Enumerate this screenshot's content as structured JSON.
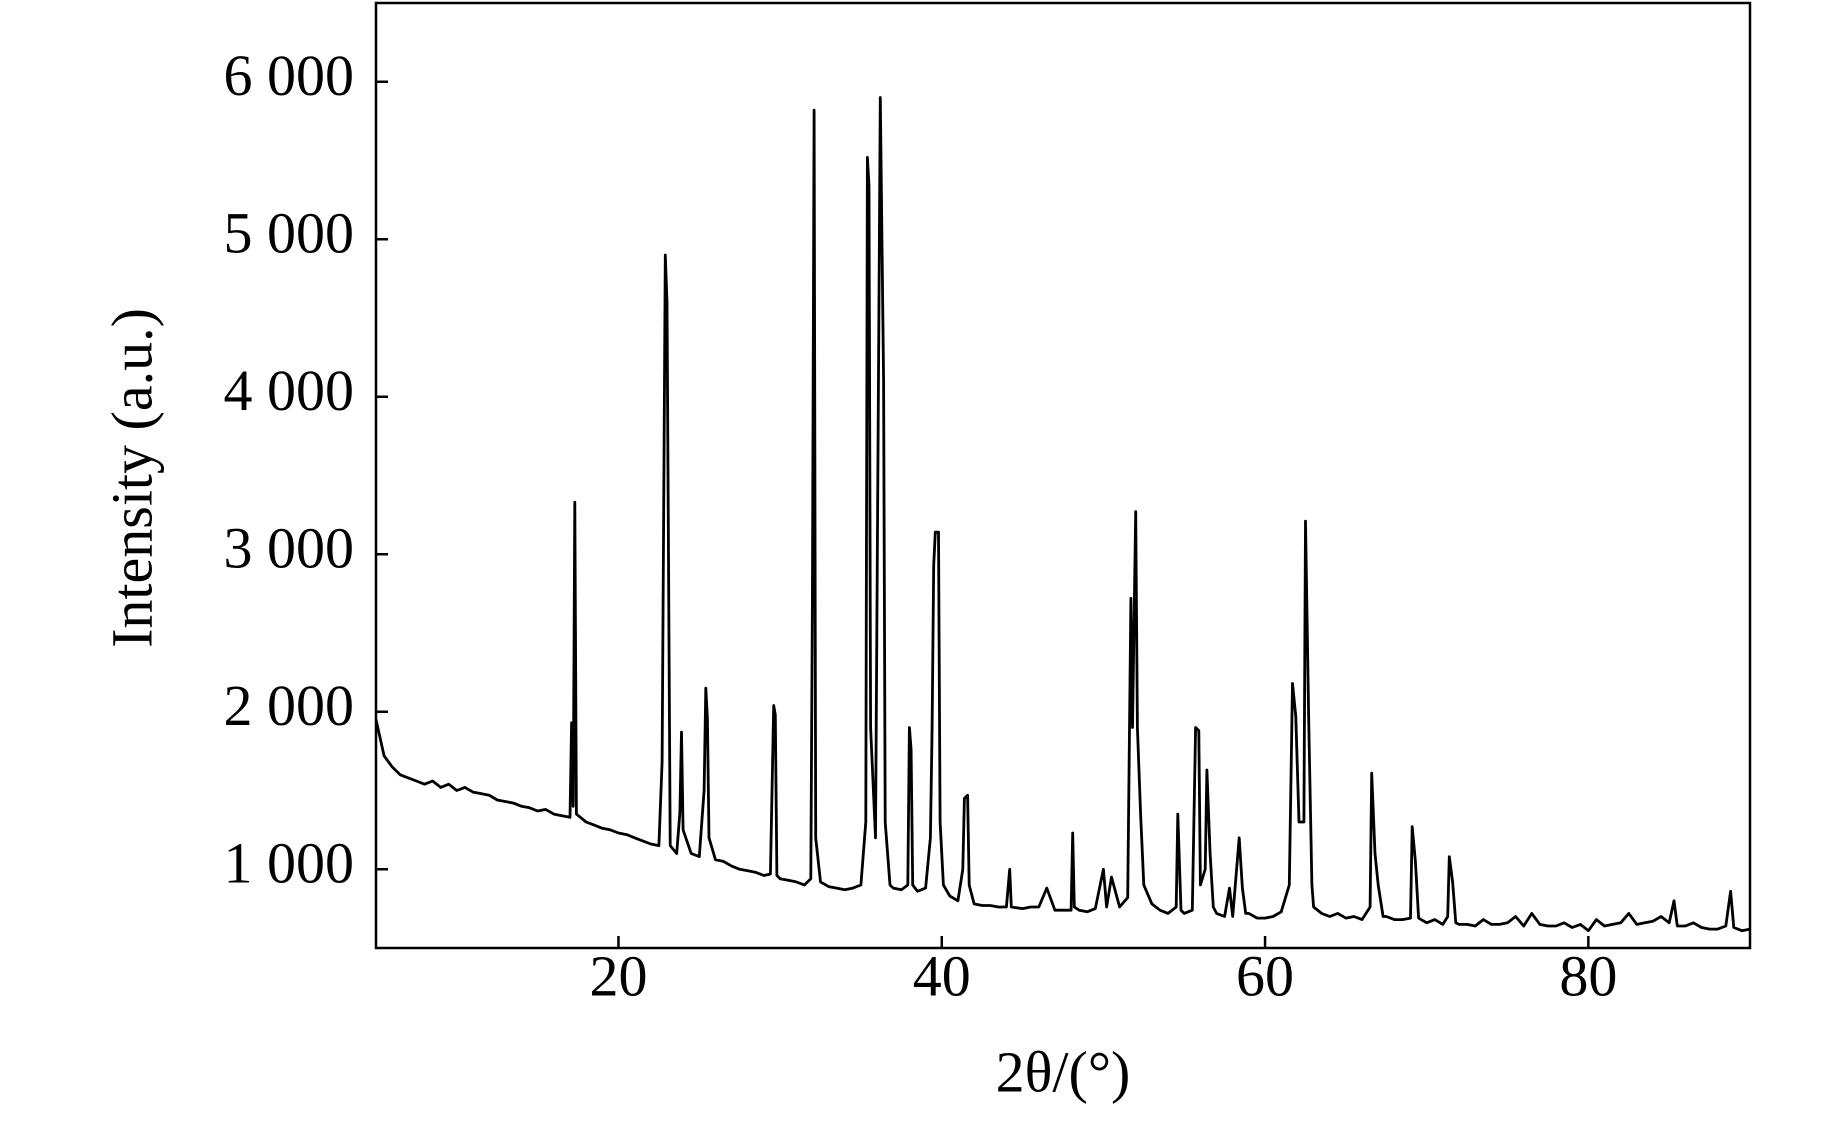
{
  "chart_data": {
    "type": "line",
    "x_label": "2θ/(°)",
    "y_label": "Intensity (a.u.)",
    "xlim": [
      5,
      90
    ],
    "xticks": [
      20,
      40,
      60,
      80
    ],
    "ylim": [
      500,
      6500
    ],
    "yticks": [
      {
        "value": 1000,
        "label": "1 000"
      },
      {
        "value": 2000,
        "label": "2 000"
      },
      {
        "value": 3000,
        "label": "3 000"
      },
      {
        "value": 4000,
        "label": "4 000"
      },
      {
        "value": 5000,
        "label": "5 000"
      },
      {
        "value": 6000,
        "label": "6 000"
      }
    ],
    "grid": false,
    "x": [
      5,
      5.5,
      6,
      6.5,
      7,
      7.5,
      8,
      8.5,
      9,
      9.5,
      10,
      10.5,
      11,
      11.5,
      12,
      12.5,
      13,
      13.5,
      14,
      14.5,
      15,
      15.5,
      16,
      16.5,
      17,
      17.1,
      17.2,
      17.3,
      17.4,
      18,
      18.5,
      19,
      19.5,
      20,
      20.5,
      21,
      21.5,
      22,
      22.5,
      22.7,
      22.9,
      23,
      23.2,
      23.6,
      23.8,
      23.9,
      24,
      24.5,
      25,
      25.3,
      25.4,
      25.5,
      25.6,
      26,
      26.5,
      27,
      27.5,
      28,
      28.5,
      29,
      29.4,
      29.6,
      29.7,
      29.8,
      30,
      30.5,
      31,
      31.5,
      31.9,
      32,
      32.1,
      32.2,
      32.5,
      33,
      33.5,
      34,
      34.5,
      35,
      35.3,
      35.4,
      35.5,
      35.6,
      35.9,
      36.2,
      36.4,
      36.5,
      36.8,
      37,
      37.5,
      37.9,
      38,
      38.1,
      38.2,
      38.5,
      39,
      39.3,
      39.4,
      39.5,
      39.6,
      39.8,
      39.9,
      40.1,
      40.5,
      41,
      41.3,
      41.4,
      41.6,
      41.7,
      42,
      42.5,
      43,
      43.5,
      44,
      44.2,
      44.3,
      45,
      45.5,
      46,
      46.5,
      47,
      47.5,
      48,
      48.1,
      48.2,
      48.5,
      49,
      49.5,
      50,
      50.2,
      50.5,
      51,
      51.5,
      51.7,
      51.8,
      52,
      52.1,
      52.3,
      52.5,
      53,
      53.5,
      54,
      54.5,
      54.6,
      54.8,
      55,
      55.5,
      55.7,
      55.9,
      56,
      56.3,
      56.4,
      56.6,
      56.8,
      57,
      57.5,
      57.8,
      58,
      58.4,
      58.6,
      58.8,
      59,
      59.5,
      60,
      60.5,
      61,
      61.5,
      61.7,
      61.9,
      62.1,
      62.4,
      62.5,
      62.7,
      62.9,
      63,
      63.5,
      64,
      64.5,
      65,
      65.5,
      66,
      66.5,
      66.6,
      66.8,
      67,
      67.3,
      67.5,
      68,
      68.5,
      69,
      69.1,
      69.3,
      69.5,
      70,
      70.5,
      71,
      71.3,
      71.4,
      71.6,
      71.8,
      72,
      72.5,
      73,
      73.5,
      74,
      74.5,
      75,
      75.5,
      76,
      76.5,
      77,
      77.5,
      78,
      78.5,
      79,
      79.5,
      80,
      80.5,
      81,
      81.5,
      82,
      82.5,
      83,
      83.5,
      84,
      84.5,
      85,
      85.3,
      85.5,
      86,
      86.5,
      87,
      87.5,
      88,
      88.5,
      88.8,
      89,
      89.5,
      90
    ],
    "series": [
      {
        "color": "#000000",
        "values": [
          1950,
          1720,
          1650,
          1600,
          1580,
          1560,
          1540,
          1560,
          1520,
          1540,
          1500,
          1520,
          1490,
          1480,
          1470,
          1440,
          1430,
          1420,
          1400,
          1390,
          1370,
          1380,
          1350,
          1340,
          1330,
          1930,
          1400,
          3330,
          1350,
          1300,
          1280,
          1260,
          1250,
          1230,
          1220,
          1200,
          1180,
          1160,
          1150,
          1680,
          4900,
          4600,
          1150,
          1100,
          1360,
          1870,
          1250,
          1100,
          1080,
          1500,
          2150,
          1960,
          1200,
          1060,
          1050,
          1020,
          1000,
          990,
          980,
          960,
          970,
          2040,
          1980,
          960,
          940,
          930,
          920,
          900,
          940,
          2700,
          5820,
          1200,
          920,
          890,
          880,
          870,
          880,
          900,
          1300,
          5520,
          5340,
          1900,
          1200,
          5900,
          4100,
          1300,
          900,
          880,
          870,
          900,
          1900,
          1760,
          900,
          860,
          880,
          1200,
          1900,
          2930,
          3140,
          3140,
          1300,
          900,
          830,
          800,
          1000,
          1450,
          1470,
          900,
          780,
          770,
          770,
          760,
          760,
          1000,
          760,
          750,
          760,
          760,
          880,
          740,
          740,
          740,
          1230,
          760,
          740,
          730,
          750,
          1000,
          760,
          950,
          760,
          820,
          2720,
          1900,
          3270,
          1900,
          1350,
          900,
          780,
          740,
          720,
          760,
          1350,
          740,
          720,
          740,
          1900,
          1880,
          900,
          1000,
          1630,
          1100,
          760,
          720,
          700,
          880,
          700,
          1200,
          880,
          720,
          720,
          690,
          690,
          700,
          730,
          900,
          2180,
          1970,
          1300,
          1300,
          3210,
          1950,
          900,
          760,
          720,
          700,
          720,
          690,
          700,
          680,
          760,
          1610,
          1100,
          900,
          700,
          700,
          680,
          680,
          690,
          1270,
          1050,
          690,
          660,
          680,
          650,
          700,
          1080,
          920,
          660,
          650,
          650,
          640,
          680,
          650,
          650,
          660,
          700,
          640,
          720,
          650,
          640,
          640,
          660,
          630,
          650,
          610,
          680,
          640,
          650,
          660,
          720,
          650,
          660,
          670,
          700,
          660,
          800,
          640,
          640,
          660,
          630,
          620,
          620,
          640,
          860,
          630,
          610,
          620
        ]
      }
    ]
  }
}
